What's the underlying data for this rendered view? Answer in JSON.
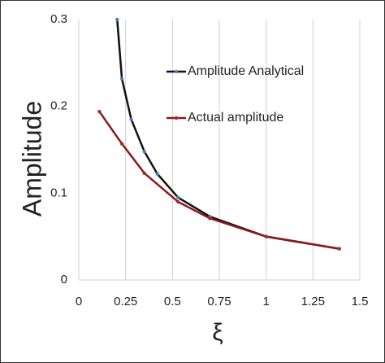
{
  "chart_data": {
    "type": "line",
    "xlabel": "ξ",
    "ylabel": "Amplitude",
    "xlim": [
      0,
      1.5
    ],
    "xticks": [
      0,
      0.25,
      0.5,
      0.75,
      1,
      1.25,
      1.5
    ],
    "ylim": [
      0,
      0.3
    ],
    "yticks": [
      0,
      0.1,
      0.2,
      0.3
    ],
    "grid": "x",
    "legend": "upper right",
    "series": [
      {
        "name": "Amplitude Analytical",
        "color": "#111111",
        "marker_color": "#4a7fc0",
        "x": [
          0.205,
          0.23,
          0.28,
          0.35,
          0.42,
          0.53,
          0.7,
          1.0,
          1.39
        ],
        "values": [
          0.3,
          0.232,
          0.185,
          0.148,
          0.122,
          0.095,
          0.073,
          0.05,
          0.036
        ]
      },
      {
        "name": "Actual amplitude",
        "color": "#8b1a1a",
        "marker_color": "#a03030",
        "x": [
          0.11,
          0.23,
          0.35,
          0.53,
          0.7,
          1.0,
          1.39
        ],
        "values": [
          0.194,
          0.157,
          0.123,
          0.09,
          0.071,
          0.05,
          0.036
        ]
      }
    ]
  }
}
